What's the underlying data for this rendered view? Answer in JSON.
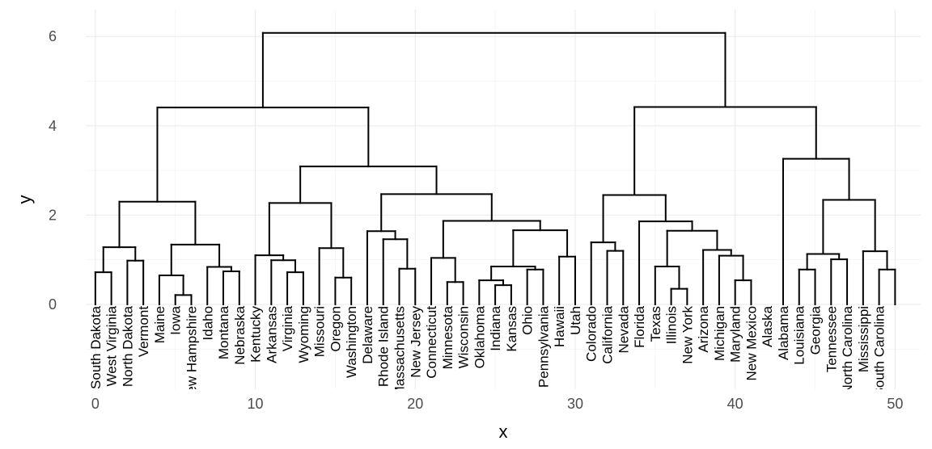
{
  "chart_data": {
    "type": "dendrogram",
    "xlabel": "x",
    "ylabel": "y",
    "xlim": [
      -0.6,
      51.6
    ],
    "ylim": [
      -1.9,
      6.6
    ],
    "x_ticks": [
      0,
      10,
      20,
      30,
      40,
      50
    ],
    "y_ticks": [
      0,
      2,
      4,
      6
    ],
    "grid": true,
    "leaves": [
      "South Dakota",
      "West Virginia",
      "North Dakota",
      "Vermont",
      "Maine",
      "Iowa",
      "New Hampshire",
      "Idaho",
      "Montana",
      "Nebraska",
      "Kentucky",
      "Arkansas",
      "Virginia",
      "Wyoming",
      "Missouri",
      "Oregon",
      "Washington",
      "Delaware",
      "Rhode Island",
      "Massachusetts",
      "New Jersey",
      "Connecticut",
      "Minnesota",
      "Wisconsin",
      "Oklahoma",
      "Indiana",
      "Kansas",
      "Ohio",
      "Pennsylvania",
      "Hawaii",
      "Utah",
      "Colorado",
      "California",
      "Nevada",
      "Florida",
      "Texas",
      "Illinois",
      "New York",
      "Arizona",
      "Michigan",
      "Maryland",
      "New Mexico",
      "Alaska",
      "Alabama",
      "Louisiana",
      "Georgia",
      "Tennessee",
      "North Carolina",
      "Mississippi",
      "South Carolina"
    ],
    "segments": [
      [
        0,
        0,
        0,
        0.72
      ],
      [
        1,
        0,
        1,
        0.72
      ],
      [
        0,
        0.72,
        1,
        0.72
      ],
      [
        2,
        0,
        2,
        0.98
      ],
      [
        3,
        0,
        3,
        0.98
      ],
      [
        2,
        0.98,
        3,
        0.98
      ],
      [
        0.5,
        0.72,
        0.5,
        1.28
      ],
      [
        2.5,
        0.98,
        2.5,
        1.28
      ],
      [
        0.5,
        1.28,
        2.5,
        1.28
      ],
      [
        5,
        0,
        5,
        0.21
      ],
      [
        6,
        0,
        6,
        0.21
      ],
      [
        5,
        0.21,
        6,
        0.21
      ],
      [
        4,
        0,
        4,
        0.65
      ],
      [
        5.5,
        0.21,
        5.5,
        0.65
      ],
      [
        4,
        0.65,
        5.5,
        0.65
      ],
      [
        8,
        0,
        8,
        0.74
      ],
      [
        9,
        0,
        9,
        0.74
      ],
      [
        8,
        0.74,
        9,
        0.74
      ],
      [
        7,
        0,
        7,
        0.84
      ],
      [
        8.5,
        0.74,
        8.5,
        0.84
      ],
      [
        7,
        0.84,
        8.5,
        0.84
      ],
      [
        4.75,
        0.65,
        4.75,
        1.34
      ],
      [
        7.75,
        0.84,
        7.75,
        1.34
      ],
      [
        4.75,
        1.34,
        7.75,
        1.34
      ],
      [
        1.5,
        1.28,
        1.5,
        2.3
      ],
      [
        6.25,
        1.34,
        6.25,
        2.3
      ],
      [
        1.5,
        2.3,
        6.25,
        2.3
      ],
      [
        12,
        0,
        12,
        0.72
      ],
      [
        13,
        0,
        13,
        0.72
      ],
      [
        12,
        0.72,
        13,
        0.72
      ],
      [
        11,
        0,
        11,
        0.99
      ],
      [
        12.5,
        0.72,
        12.5,
        0.99
      ],
      [
        11,
        0.99,
        12.5,
        0.99
      ],
      [
        10,
        0,
        10,
        1.1
      ],
      [
        11.75,
        0.99,
        11.75,
        1.1
      ],
      [
        10,
        1.1,
        11.75,
        1.1
      ],
      [
        15,
        0,
        15,
        0.6
      ],
      [
        16,
        0,
        16,
        0.6
      ],
      [
        15,
        0.6,
        16,
        0.6
      ],
      [
        14,
        0,
        14,
        1.26
      ],
      [
        15.5,
        0.6,
        15.5,
        1.26
      ],
      [
        14,
        1.26,
        15.5,
        1.26
      ],
      [
        10.875,
        1.1,
        10.875,
        2.27
      ],
      [
        14.75,
        1.26,
        14.75,
        2.27
      ],
      [
        10.875,
        2.27,
        14.75,
        2.27
      ],
      [
        19,
        0,
        19,
        0.8
      ],
      [
        20,
        0,
        20,
        0.8
      ],
      [
        19,
        0.8,
        20,
        0.8
      ],
      [
        18,
        0,
        18,
        1.46
      ],
      [
        19.5,
        0.8,
        19.5,
        1.46
      ],
      [
        18,
        1.46,
        19.5,
        1.46
      ],
      [
        17,
        0,
        17,
        1.64
      ],
      [
        18.75,
        1.46,
        18.75,
        1.64
      ],
      [
        17,
        1.64,
        18.75,
        1.64
      ],
      [
        22,
        0,
        22,
        0.5
      ],
      [
        23,
        0,
        23,
        0.5
      ],
      [
        22,
        0.5,
        23,
        0.5
      ],
      [
        21,
        0,
        21,
        1.04
      ],
      [
        22.5,
        0.5,
        22.5,
        1.04
      ],
      [
        21,
        1.04,
        22.5,
        1.04
      ],
      [
        25,
        0,
        25,
        0.43
      ],
      [
        26,
        0,
        26,
        0.43
      ],
      [
        25,
        0.43,
        26,
        0.43
      ],
      [
        24,
        0,
        24,
        0.54
      ],
      [
        25.5,
        0.43,
        25.5,
        0.54
      ],
      [
        24,
        0.54,
        25.5,
        0.54
      ],
      [
        27,
        0,
        27,
        0.78
      ],
      [
        28,
        0,
        28,
        0.78
      ],
      [
        27,
        0.78,
        28,
        0.78
      ],
      [
        24.75,
        0.54,
        24.75,
        0.85
      ],
      [
        27.5,
        0.78,
        27.5,
        0.85
      ],
      [
        24.75,
        0.85,
        27.5,
        0.85
      ],
      [
        29,
        0,
        29,
        1.07
      ],
      [
        30,
        0,
        30,
        1.07
      ],
      [
        29,
        1.07,
        30,
        1.07
      ],
      [
        26.125,
        0.85,
        26.125,
        1.66
      ],
      [
        29.5,
        1.07,
        29.5,
        1.66
      ],
      [
        26.125,
        1.66,
        29.5,
        1.66
      ],
      [
        21.75,
        1.04,
        21.75,
        1.87
      ],
      [
        27.8125,
        1.66,
        27.8125,
        1.87
      ],
      [
        21.75,
        1.87,
        27.8125,
        1.87
      ],
      [
        17.875,
        1.64,
        17.875,
        2.47
      ],
      [
        24.78125,
        1.87,
        24.78125,
        2.47
      ],
      [
        17.875,
        2.47,
        24.78125,
        2.47
      ],
      [
        12.8125,
        2.27,
        12.8125,
        3.09
      ],
      [
        21.328125,
        2.47,
        21.328125,
        3.09
      ],
      [
        12.8125,
        3.09,
        21.328125,
        3.09
      ],
      [
        3.875,
        2.3,
        3.875,
        4.41
      ],
      [
        17.0703125,
        3.09,
        17.0703125,
        4.41
      ],
      [
        3.875,
        4.41,
        17.0703125,
        4.41
      ],
      [
        32,
        0,
        32,
        1.2
      ],
      [
        33,
        0,
        33,
        1.2
      ],
      [
        32,
        1.2,
        33,
        1.2
      ],
      [
        31,
        0,
        31,
        1.39
      ],
      [
        32.5,
        1.2,
        32.5,
        1.39
      ],
      [
        31,
        1.39,
        32.5,
        1.39
      ],
      [
        36,
        0,
        36,
        0.35
      ],
      [
        37,
        0,
        37,
        0.35
      ],
      [
        36,
        0.35,
        37,
        0.35
      ],
      [
        35,
        0,
        35,
        0.85
      ],
      [
        36.5,
        0.35,
        36.5,
        0.85
      ],
      [
        35,
        0.85,
        36.5,
        0.85
      ],
      [
        40,
        0,
        40,
        0.54
      ],
      [
        41,
        0,
        41,
        0.54
      ],
      [
        40,
        0.54,
        41,
        0.54
      ],
      [
        39,
        0,
        39,
        1.09
      ],
      [
        40.5,
        0.54,
        40.5,
        1.09
      ],
      [
        39,
        1.09,
        40.5,
        1.09
      ],
      [
        38,
        0,
        38,
        1.22
      ],
      [
        39.75,
        1.09,
        39.75,
        1.22
      ],
      [
        38,
        1.22,
        39.75,
        1.22
      ],
      [
        35.75,
        0.85,
        35.75,
        1.65
      ],
      [
        38.875,
        1.22,
        38.875,
        1.65
      ],
      [
        35.75,
        1.65,
        38.875,
        1.65
      ],
      [
        34,
        0,
        34,
        1.86
      ],
      [
        37.3125,
        1.65,
        37.3125,
        1.86
      ],
      [
        34,
        1.86,
        37.3125,
        1.86
      ],
      [
        31.75,
        1.39,
        31.75,
        2.45
      ],
      [
        35.65625,
        1.86,
        35.65625,
        2.45
      ],
      [
        31.75,
        2.45,
        35.65625,
        2.45
      ],
      [
        44,
        0,
        44,
        0.78
      ],
      [
        45,
        0,
        45,
        0.78
      ],
      [
        44,
        0.78,
        45,
        0.78
      ],
      [
        46,
        0,
        46,
        1.01
      ],
      [
        47,
        0,
        47,
        1.01
      ],
      [
        46,
        1.01,
        47,
        1.01
      ],
      [
        44.5,
        0.78,
        44.5,
        1.13
      ],
      [
        46.5,
        1.01,
        46.5,
        1.13
      ],
      [
        44.5,
        1.13,
        46.5,
        1.13
      ],
      [
        49,
        0,
        49,
        0.78
      ],
      [
        50,
        0,
        50,
        0.78
      ],
      [
        49,
        0.78,
        50,
        0.78
      ],
      [
        48,
        0,
        48,
        1.19
      ],
      [
        49.5,
        0.78,
        49.5,
        1.19
      ],
      [
        48,
        1.19,
        49.5,
        1.19
      ],
      [
        45.5,
        1.13,
        45.5,
        2.34
      ],
      [
        48.75,
        1.19,
        48.75,
        2.34
      ],
      [
        45.5,
        2.34,
        48.75,
        2.34
      ],
      [
        43,
        0,
        43,
        3.26
      ],
      [
        47.125,
        2.34,
        47.125,
        3.26
      ],
      [
        43,
        3.26,
        47.125,
        3.26
      ],
      [
        33.703125,
        2.45,
        33.703125,
        4.42
      ],
      [
        45.0625,
        3.26,
        45.0625,
        4.42
      ],
      [
        33.703125,
        4.42,
        45.0625,
        4.42
      ],
      [
        10.47265625,
        4.41,
        10.47265625,
        6.08
      ],
      [
        39.3828125,
        4.42,
        39.3828125,
        6.08
      ],
      [
        10.47265625,
        6.08,
        39.3828125,
        6.08
      ]
    ]
  }
}
